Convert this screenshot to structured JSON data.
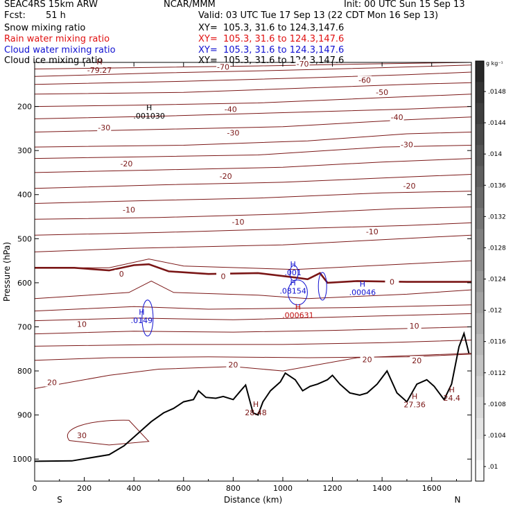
{
  "header": {
    "model": "SEAC4RS 15km ARW",
    "org": "NCAR/MMM",
    "init": "Init: 00 UTC Sun 15 Sep 13",
    "fcst_label": "Fcst:",
    "fcst_value": "51 h",
    "valid": "Valid: 03 UTC Tue 17 Sep 13 (22 CDT Mon 16 Sep 13)"
  },
  "fields": [
    {
      "name": "Snow mixing ratio",
      "xy": "XY=  105.3, 31.6 to 124.3,147.6",
      "color": "#000000"
    },
    {
      "name": "Rain water mixing ratio",
      "xy": "XY=  105.3, 31.6 to 124.3,147.6",
      "color": "#e01010"
    },
    {
      "name": "Cloud water mixing ratio",
      "xy": "XY=  105.3, 31.6 to 124.3,147.6",
      "color": "#1010d0"
    },
    {
      "name": "Cloud ice mixing ratio",
      "xy": "XY=  105.3, 31.6 to 124.3,147.6",
      "color": "#000000"
    }
  ],
  "colors": {
    "temperature": "#7a1616",
    "terrain": "#000000",
    "cloud_water": "#1010d0",
    "rain_water": "#c01010"
  },
  "chart_data": {
    "type": "contour cross-section",
    "xlabel": "Distance (km)",
    "ylabel": "Pressure (hPa)",
    "x_range": [
      0,
      1760
    ],
    "y_range": [
      1050,
      100
    ],
    "x_ticks": [
      0,
      200,
      400,
      600,
      800,
      1000,
      1200,
      1400,
      1600
    ],
    "y_ticks": [
      200,
      300,
      400,
      500,
      600,
      700,
      800,
      900,
      1000
    ],
    "x_end_labels": {
      "left": "S",
      "right": "N"
    },
    "colorbar": {
      "unit": "g kg⁻¹",
      "ticks": [
        ".0148",
        ".0144",
        ".014",
        ".0136",
        ".0132",
        ".0128",
        ".0124",
        ".012",
        ".0116",
        ".0112",
        ".0108",
        ".0104",
        ".01"
      ]
    },
    "temperature_contour_labels": [
      {
        "text": "-70",
        "x": 760,
        "p": 110
      },
      {
        "text": "-70",
        "x": 1080,
        "p": 103
      },
      {
        "text": "-60",
        "x": 1330,
        "p": 140
      },
      {
        "text": "-50",
        "x": 1400,
        "p": 168
      },
      {
        "text": "-40",
        "x": 790,
        "p": 206
      },
      {
        "text": "-40",
        "x": 1460,
        "p": 224
      },
      {
        "text": "-30",
        "x": 280,
        "p": 248
      },
      {
        "text": "-30",
        "x": 800,
        "p": 260
      },
      {
        "text": "-30",
        "x": 1500,
        "p": 286
      },
      {
        "text": "-20",
        "x": 370,
        "p": 330
      },
      {
        "text": "-20",
        "x": 770,
        "p": 358
      },
      {
        "text": "-20",
        "x": 1510,
        "p": 380
      },
      {
        "text": "-10",
        "x": 380,
        "p": 434
      },
      {
        "text": "-10",
        "x": 820,
        "p": 462
      },
      {
        "text": "-10",
        "x": 1360,
        "p": 484
      },
      {
        "text": "0",
        "x": 350,
        "p": 580
      },
      {
        "text": "0",
        "x": 760,
        "p": 585
      },
      {
        "text": "0",
        "x": 1440,
        "p": 598
      },
      {
        "text": "10",
        "x": 190,
        "p": 694
      },
      {
        "text": "10",
        "x": 1530,
        "p": 698
      },
      {
        "text": "20",
        "x": 70,
        "p": 826
      },
      {
        "text": "20",
        "x": 800,
        "p": 786
      },
      {
        "text": "20",
        "x": 1340,
        "p": 774
      },
      {
        "text": "20",
        "x": 1540,
        "p": 776
      },
      {
        "text": "30",
        "x": 190,
        "p": 946
      }
    ],
    "extrema_labels": [
      {
        "type": "H",
        "value": ".001030",
        "x": 450,
        "p": 215,
        "field": "snow"
      },
      {
        "type": "H",
        "value": "-79.27",
        "x": 250,
        "p": 111,
        "field": "temperature"
      },
      {
        "type": "H",
        "value": ".001",
        "x": 1030,
        "p": 570,
        "field": "cloud_water"
      },
      {
        "type": "H",
        "value": ".08154",
        "x": 1030,
        "p": 612,
        "field": "cloud_water"
      },
      {
        "type": "H",
        "value": ".00046",
        "x": 1310,
        "p": 615,
        "field": "cloud_water"
      },
      {
        "type": "H",
        "value": ".0149",
        "x": 420,
        "p": 679,
        "field": "cloud_water"
      },
      {
        "type": "H",
        "value": ".000631",
        "x": 1050,
        "p": 667,
        "field": "rain_water"
      },
      {
        "type": "H",
        "value": "28.48",
        "x": 880,
        "p": 888,
        "field": "temperature"
      },
      {
        "type": "H",
        "value": "27.36",
        "x": 1520,
        "p": 870,
        "field": "temperature"
      },
      {
        "type": "H",
        "value": "24.4",
        "x": 1670,
        "p": 855,
        "field": "temperature"
      }
    ],
    "terrain_profile": [
      [
        0,
        1005
      ],
      [
        150,
        1004
      ],
      [
        300,
        990
      ],
      [
        360,
        970
      ],
      [
        420,
        940
      ],
      [
        470,
        915
      ],
      [
        520,
        895
      ],
      [
        560,
        885
      ],
      [
        600,
        870
      ],
      [
        640,
        865
      ],
      [
        660,
        845
      ],
      [
        690,
        860
      ],
      [
        730,
        862
      ],
      [
        760,
        858
      ],
      [
        800,
        865
      ],
      [
        830,
        845
      ],
      [
        850,
        832
      ],
      [
        880,
        895
      ],
      [
        900,
        900
      ],
      [
        920,
        870
      ],
      [
        950,
        845
      ],
      [
        990,
        825
      ],
      [
        1010,
        805
      ],
      [
        1050,
        820
      ],
      [
        1080,
        845
      ],
      [
        1110,
        835
      ],
      [
        1140,
        830
      ],
      [
        1180,
        820
      ],
      [
        1200,
        810
      ],
      [
        1230,
        830
      ],
      [
        1270,
        850
      ],
      [
        1310,
        855
      ],
      [
        1340,
        850
      ],
      [
        1380,
        830
      ],
      [
        1420,
        800
      ],
      [
        1460,
        850
      ],
      [
        1500,
        870
      ],
      [
        1540,
        830
      ],
      [
        1580,
        820
      ],
      [
        1610,
        835
      ],
      [
        1650,
        865
      ],
      [
        1680,
        830
      ],
      [
        1710,
        745
      ],
      [
        1730,
        715
      ],
      [
        1750,
        760
      ]
    ]
  }
}
